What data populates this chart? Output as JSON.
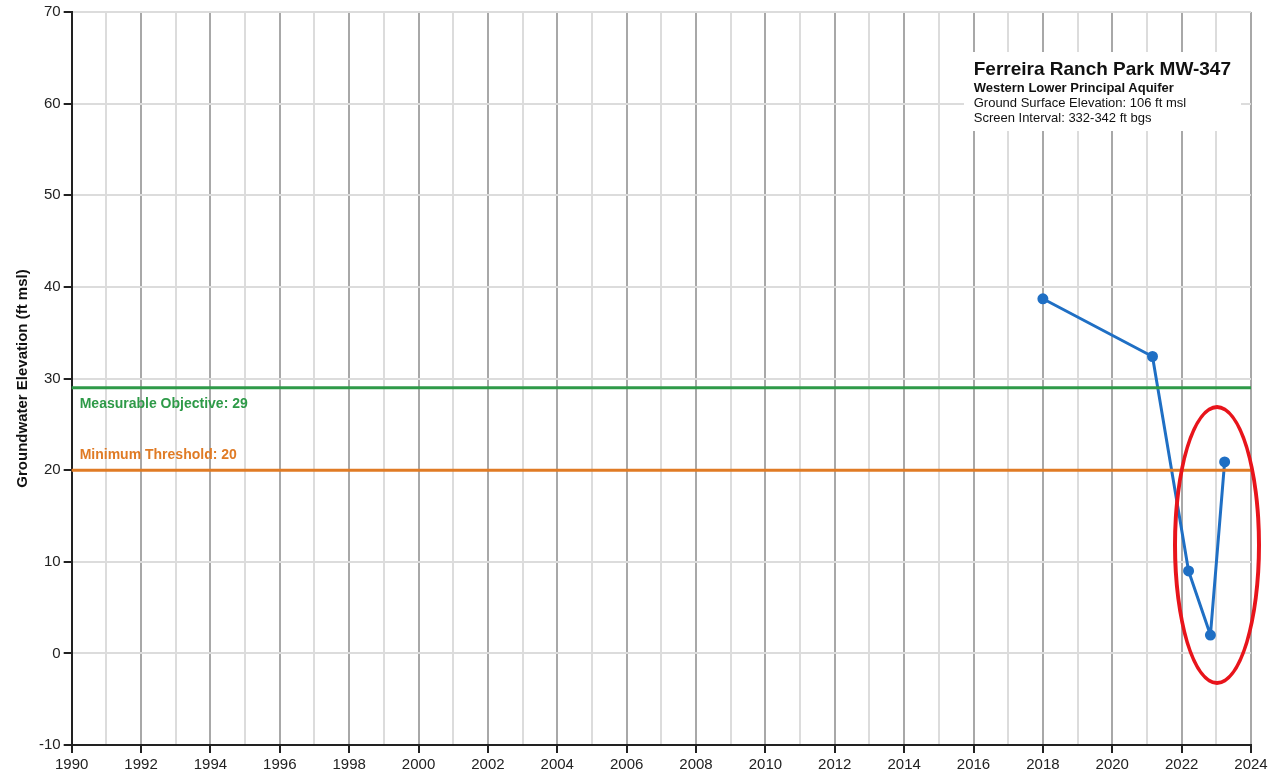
{
  "chart_data": {
    "type": "line",
    "title": "Ferreira Ranch Park MW-347",
    "subtitle": "Western Lower Principal Aquifer",
    "ylabel": "Groundwater Elevation (ft msl)",
    "annotations": [
      "Ground Surface Elevation: 106 ft msl",
      "Screen Interval: 332-342 ft bgs"
    ],
    "series": [
      {
        "color": "#1f6fc4",
        "x": [
          2018.0,
          2021.16,
          2022.2,
          2022.83,
          2023.24
        ],
        "values": [
          38.7,
          32.4,
          9,
          2,
          20.9
        ]
      }
    ],
    "xlim": [
      1990,
      2024
    ],
    "xticks": [
      1990,
      {
        "value": 1991,
        "label": null
      },
      1992,
      {
        "value": 1993,
        "label": null
      },
      1994,
      {
        "value": 1995,
        "label": null
      },
      1996,
      {
        "value": 1997,
        "label": null
      },
      1998,
      {
        "value": 1999,
        "label": null
      },
      2000,
      {
        "value": 2001,
        "label": null
      },
      2002,
      {
        "value": 2003,
        "label": null
      },
      2004,
      {
        "value": 2005,
        "label": null
      },
      2006,
      {
        "value": 2007,
        "label": null
      },
      2008,
      {
        "value": 2009,
        "label": null
      },
      2010,
      {
        "value": 2011,
        "label": null
      },
      2012,
      {
        "value": 2013,
        "label": null
      },
      2014,
      {
        "value": 2015,
        "label": null
      },
      2016,
      {
        "value": 2017,
        "label": null
      },
      2018,
      {
        "value": 2019,
        "label": null
      },
      2020,
      {
        "value": 2021,
        "label": null
      },
      2022,
      {
        "value": 2023,
        "label": null
      },
      2024
    ],
    "ylim": [
      -10,
      70
    ],
    "yticks": [
      -10,
      0,
      10,
      20,
      30,
      40,
      50,
      60,
      70
    ],
    "ref_lines": [
      {
        "axis": "y",
        "value": 29,
        "label": "Measurable Objective: 29",
        "color": "#2e9a48"
      },
      {
        "axis": "y",
        "value": 20,
        "label": "Minimum Threshold: 20",
        "color": "#e07b25"
      }
    ],
    "grid": true,
    "legend": false,
    "marker": "circle",
    "line_style": "solid"
  }
}
